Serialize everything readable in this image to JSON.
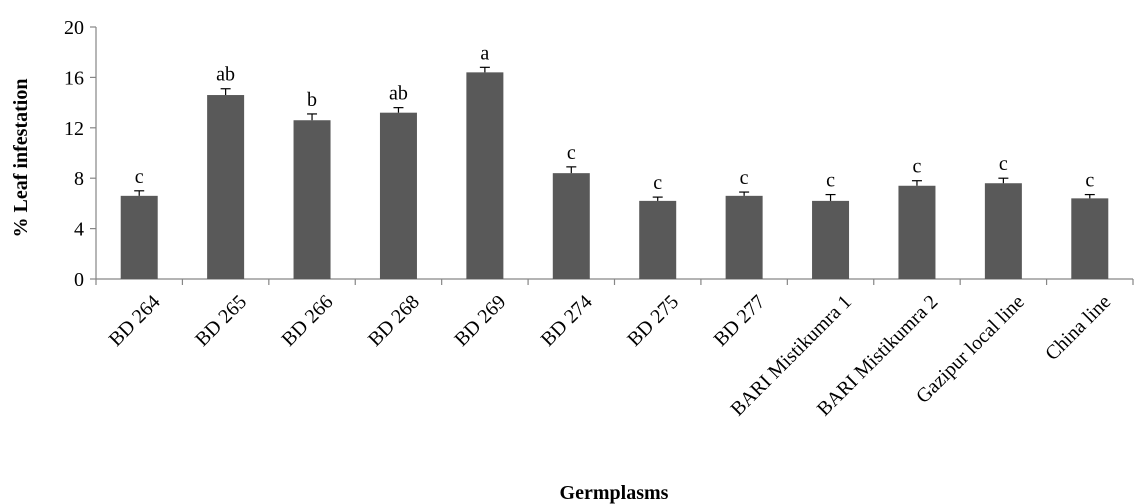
{
  "chart_data": {
    "type": "bar",
    "title": "",
    "xlabel": "Germplasms",
    "ylabel": "% Leaf infestation",
    "ylim": [
      0,
      20
    ],
    "yticks": [
      0,
      4,
      8,
      12,
      16,
      20
    ],
    "grid": false,
    "categories": [
      "BD 264",
      "BD 265",
      "BD 266",
      "BD 268",
      "BD 269",
      "BD 274",
      "BD 275",
      "BD 277",
      "BARI Mistikumra 1",
      "BARI Mistikumra 2",
      "Gazipur local line",
      "China line"
    ],
    "values": [
      6.6,
      14.6,
      12.6,
      13.2,
      16.4,
      8.4,
      6.2,
      6.6,
      6.2,
      7.4,
      7.6,
      6.4
    ],
    "errors": [
      0.4,
      0.5,
      0.5,
      0.4,
      0.4,
      0.5,
      0.3,
      0.3,
      0.5,
      0.4,
      0.4,
      0.3
    ],
    "significance": [
      "c",
      "ab",
      "b",
      "ab",
      "a",
      "c",
      "c",
      "c",
      "c",
      "c",
      "c",
      "c"
    ],
    "bar_color": "#595959"
  }
}
